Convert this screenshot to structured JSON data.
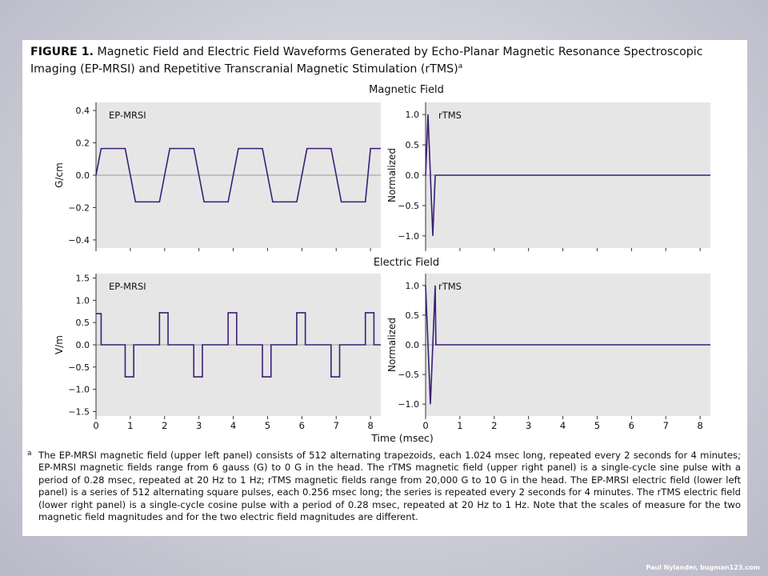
{
  "figure": {
    "title_prefix": "FIGURE 1.",
    "title_text": "Magnetic Field and Electric Field Waveforms Generated by Echo-Planar Magnetic Resonance Spectroscopic Imaging (EP-MRSI) and Repetitive Transcranial Magnetic Stimulation (rTMS)",
    "title_superscript": "a"
  },
  "sections": {
    "magnetic": "Magnetic Field",
    "electric": "Electric Field"
  },
  "xlabel": "Time (msec)",
  "footnote": {
    "mark": "a",
    "text": "The EP-MRSI magnetic field (upper left panel) consists of 512 alternating trapezoids, each 1.024 msec long, repeated every 2 seconds for 4 minutes; EP-MRSI magnetic fields range from 6 gauss (G) to 0 G in the head. The rTMS magnetic field (upper right panel) is a single-cycle sine pulse with a period of 0.28 msec, repeated at 20 Hz to 1 Hz; rTMS magnetic fields range from 20,000 G to 10 G in the head. The EP-MRSI electric field (lower left panel) is a series of 512 alternating square pulses, each 0.256 msec long; the series is repeated every 2 seconds for 4 minutes. The rTMS electric field (lower right panel) is a single-cycle cosine pulse with a period of 0.28 msec, repeated at 20 Hz to 1 Hz. Note that the scales of measure for the two magnetic field magnitudes and for the two electric field magnitudes are different."
  },
  "credit": "Paul Nylander, bugman123.com",
  "colors": {
    "line": "#3a1d78",
    "panel_bg": "#e6e6e6",
    "zero_line": "#9a9a9a"
  },
  "chart_data": [
    {
      "type": "line",
      "panel": "magnetic-ep-mrsi",
      "label": "EP-MRSI",
      "ylabel": "G/cm",
      "xlim": [
        0,
        8.3
      ],
      "ylim": [
        -0.45,
        0.45
      ],
      "yticks": [
        -0.4,
        -0.2,
        0.0,
        0.2,
        0.4
      ],
      "ytick_labels": [
        "−0.4",
        "−0.2",
        "0.0",
        "0.2",
        "0.4"
      ],
      "x": [
        0,
        0.15,
        0.85,
        1.15,
        1.85,
        2.15,
        2.85,
        3.15,
        3.85,
        4.15,
        4.85,
        5.15,
        5.85,
        6.15,
        6.85,
        7.15,
        7.85,
        8.0,
        8.3
      ],
      "y": [
        0,
        0.165,
        0.165,
        -0.165,
        -0.165,
        0.165,
        0.165,
        -0.165,
        -0.165,
        0.165,
        0.165,
        -0.165,
        -0.165,
        0.165,
        0.165,
        -0.165,
        -0.165,
        0.165,
        0.165
      ]
    },
    {
      "type": "line",
      "panel": "magnetic-rtms",
      "label": "rTMS",
      "ylabel": "Normalized",
      "xlim": [
        0,
        8.3
      ],
      "ylim": [
        -1.2,
        1.2
      ],
      "yticks": [
        -1.0,
        -0.5,
        0.0,
        0.5,
        1.0
      ],
      "ytick_labels": [
        "−1.0",
        "−0.5",
        "0.0",
        "0.5",
        "1.0"
      ],
      "x": [
        0,
        0.07,
        0.14,
        0.21,
        0.28,
        8.3
      ],
      "y": [
        0,
        1.0,
        0,
        -1.0,
        0,
        0
      ]
    },
    {
      "type": "line",
      "panel": "electric-ep-mrsi",
      "label": "EP-MRSI",
      "ylabel": "V/m",
      "xlim": [
        0,
        8.3
      ],
      "ylim": [
        -1.6,
        1.6
      ],
      "yticks": [
        -1.5,
        -1.0,
        -0.5,
        0.0,
        0.5,
        1.0,
        1.5
      ],
      "ytick_labels": [
        "−1.5",
        "−1.0",
        "−0.5",
        "0.0",
        "0.5",
        "1.0",
        "1.5"
      ],
      "x": [
        0,
        0.05,
        0.05,
        0.15,
        0.15,
        0.85,
        0.85,
        1.1,
        1.1,
        1.85,
        1.85,
        2.1,
        2.1,
        2.85,
        2.85,
        3.1,
        3.1,
        3.85,
        3.85,
        4.1,
        4.1,
        4.85,
        4.85,
        5.1,
        5.1,
        5.85,
        5.85,
        6.1,
        6.1,
        6.85,
        6.85,
        7.1,
        7.1,
        7.85,
        7.85,
        8.1,
        8.1,
        8.3
      ],
      "y": [
        0.7,
        0.7,
        0.7,
        0.7,
        0,
        0,
        -0.72,
        -0.72,
        0,
        0,
        0.72,
        0.72,
        0,
        0,
        -0.72,
        -0.72,
        0,
        0,
        0.72,
        0.72,
        0,
        0,
        -0.72,
        -0.72,
        0,
        0,
        0.72,
        0.72,
        0,
        0,
        -0.72,
        -0.72,
        0,
        0,
        0.72,
        0.72,
        0,
        0
      ]
    },
    {
      "type": "line",
      "panel": "electric-rtms",
      "label": "rTMS",
      "ylabel": "Normalized",
      "xlabel": "Time (msec)",
      "xlim": [
        0,
        8.3
      ],
      "xticks": [
        0,
        1,
        2,
        3,
        4,
        5,
        6,
        7,
        8
      ],
      "ylim": [
        -1.2,
        1.2
      ],
      "yticks": [
        -1.0,
        -0.5,
        0.0,
        0.5,
        1.0
      ],
      "ytick_labels": [
        "−1.0",
        "−0.5",
        "0.0",
        "0.5",
        "1.0"
      ],
      "x": [
        0,
        0.14,
        0.28,
        0.3,
        8.3
      ],
      "y": [
        1.0,
        -1.0,
        1.0,
        0,
        0
      ]
    }
  ]
}
